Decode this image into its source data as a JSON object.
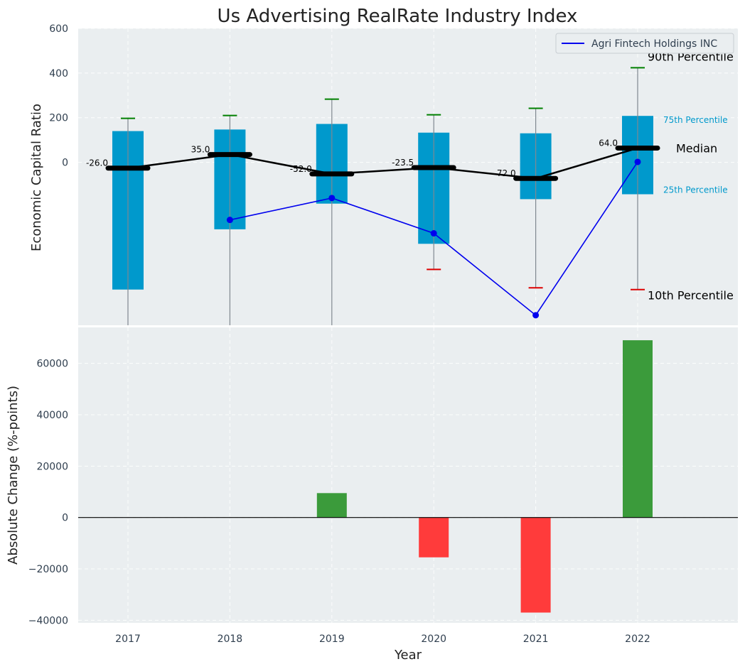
{
  "chart_data": [
    {
      "type": "box",
      "title": "Us Advertising RealRate Industry Index",
      "ylabel": "Economic Capital Ratio",
      "ylim": [
        -730,
        600
      ],
      "yticks": [
        0,
        200,
        400,
        600
      ],
      "categories": [
        "2017",
        "2018",
        "2019",
        "2020",
        "2021",
        "2022"
      ],
      "boxes": [
        {
          "year": "2017",
          "p10": -760,
          "p25": -570,
          "median": -26.0,
          "p75": 140,
          "p90": 197,
          "median_label": "-26.0"
        },
        {
          "year": "2018",
          "p10": -760,
          "p25": -300,
          "median": 35.0,
          "p75": 147,
          "p90": 210,
          "median_label": "35.0"
        },
        {
          "year": "2019",
          "p10": -760,
          "p25": -185,
          "median": -52.0,
          "p75": 172,
          "p90": 283,
          "median_label": "-52.0"
        },
        {
          "year": "2020",
          "p10": -480,
          "p25": -365,
          "median": -23.5,
          "p75": 133,
          "p90": 213,
          "median_label": "-23.5"
        },
        {
          "year": "2021",
          "p10": -562,
          "p25": -165,
          "median": -72.0,
          "p75": 130,
          "p90": 242,
          "median_label": "-72.0"
        },
        {
          "year": "2022",
          "p10": -570,
          "p25": -143,
          "median": 64.0,
          "p75": 208,
          "p90": 424,
          "median_label": "64.0"
        }
      ],
      "company_series": {
        "name": "Agri Fintech Holdings INC",
        "x": [
          "2018",
          "2019",
          "2020",
          "2021",
          "2022"
        ],
        "values": [
          -258,
          -160,
          -318,
          -685,
          2
        ]
      },
      "annotations": {
        "p90": "90th Percentile",
        "p75": "75th Percentile",
        "median": "Median",
        "p25": "25th Percentile",
        "p10": "10th Percentile"
      },
      "legend": "top-right",
      "colors": {
        "box": "#0099cc",
        "median": "#000000",
        "company": "#0000ee",
        "whisker_top": "#008000",
        "whisker_bottom": "#dd0000",
        "background": "#eaeef0"
      }
    },
    {
      "type": "bar",
      "xlabel": "Year",
      "ylabel": "Absolute Change (%-points)",
      "ylim": [
        -41000,
        74000
      ],
      "yticks": [
        -40000,
        -20000,
        0,
        20000,
        40000,
        60000
      ],
      "ytick_labels": [
        "−40000",
        "−20000",
        "0",
        "20000",
        "40000",
        "60000"
      ],
      "categories": [
        "2017",
        "2018",
        "2019",
        "2020",
        "2021",
        "2022"
      ],
      "values": [
        0,
        0,
        9500,
        -15500,
        -37000,
        69000
      ],
      "colors": {
        "positive": "#3b9b3b",
        "negative": "#ff3b3b"
      }
    }
  ]
}
